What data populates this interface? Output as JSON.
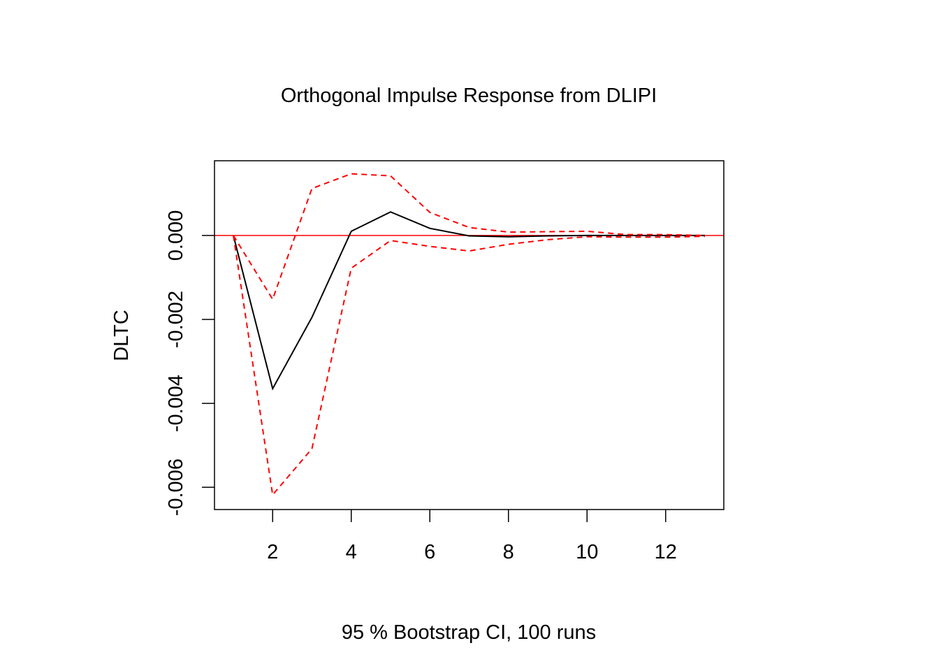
{
  "chart_data": {
    "type": "line",
    "title": "Orthogonal Impulse Response from DLIPI",
    "xlabel": "95 % Bootstrap CI,  100 runs",
    "ylabel": "DLTC",
    "xlim": [
      0.52,
      13.48
    ],
    "ylim": [
      -0.00653,
      0.00178
    ],
    "x_ticks": [
      2,
      4,
      6,
      8,
      10,
      12
    ],
    "x_tick_labels": [
      "2",
      "4",
      "6",
      "8",
      "10",
      "12"
    ],
    "y_ticks": [
      -0.006,
      -0.004,
      -0.002,
      0.0
    ],
    "y_tick_labels": [
      "-0.006",
      "-0.004",
      "-0.002",
      "0.000"
    ],
    "x": [
      1,
      2,
      3,
      4,
      5,
      6,
      7,
      8,
      9,
      10,
      11,
      12,
      13
    ],
    "series": [
      {
        "values": [
          0.0,
          -0.00365,
          -0.00195,
          0.0001,
          0.00056,
          0.00017,
          -1e-05,
          -3e-05,
          -1e-05,
          0.0,
          0.0,
          0.0,
          0.0
        ],
        "color": "#000000",
        "style": "solid"
      },
      {
        "values": [
          0.0,
          -0.00152,
          0.00112,
          0.00147,
          0.00142,
          0.00055,
          0.00019,
          8e-05,
          9e-05,
          0.0001,
          2e-05,
          2e-05,
          0.0
        ],
        "color": "#ff0000",
        "style": "dashed"
      },
      {
        "values": [
          0.0,
          -0.00618,
          -0.00508,
          -0.00078,
          -0.00012,
          -0.00026,
          -0.00037,
          -0.00021,
          -0.0001,
          -3e-05,
          -4e-05,
          -4e-05,
          -2e-05
        ],
        "color": "#ff0000",
        "style": "dashed"
      }
    ],
    "reference_line": {
      "y": 0.0,
      "color": "#ff0000"
    },
    "grid": false,
    "box": true
  }
}
